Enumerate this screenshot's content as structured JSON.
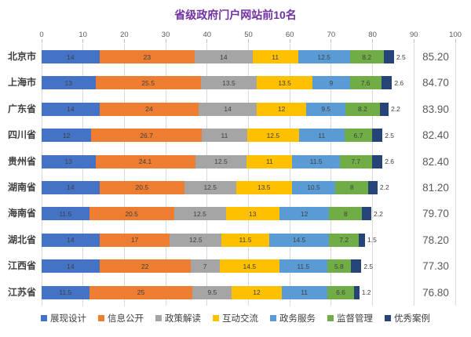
{
  "chart_data": {
    "type": "bar",
    "orientation": "horizontal-stacked",
    "title": "省级政府门户网站前10名",
    "title_color": "#7030A0",
    "grid": true,
    "gridline_color": "#D9D9D9",
    "legend_position": "bottom",
    "x_axis": {
      "min": 0,
      "max": 100,
      "ticks": [
        0,
        10,
        20,
        30,
        40,
        50,
        60,
        70,
        80,
        90,
        100
      ]
    },
    "categories": [
      "北京市",
      "上海市",
      "广东省",
      "四川省",
      "贵州省",
      "湖南省",
      "海南省",
      "湖北省",
      "江西省",
      "江苏省"
    ],
    "series": [
      {
        "name": "展现设计",
        "color": "#4472C4",
        "values": [
          14,
          13,
          14,
          12,
          13,
          14,
          11.5,
          14,
          14,
          11.5
        ]
      },
      {
        "name": "信息公开",
        "color": "#ED7D31",
        "values": [
          23,
          25.5,
          24,
          26.7,
          24.1,
          20.5,
          20.5,
          17,
          22,
          25
        ]
      },
      {
        "name": "政策解读",
        "color": "#A5A5A5",
        "values": [
          14,
          13.5,
          14,
          11,
          12.5,
          12.5,
          12.5,
          12.5,
          7,
          9.5
        ]
      },
      {
        "name": "互动交流",
        "color": "#FFC000",
        "values": [
          11,
          13.5,
          12,
          12.5,
          11,
          13.5,
          13,
          11.5,
          14.5,
          12
        ]
      },
      {
        "name": "政务服务",
        "color": "#5B9BD5",
        "values": [
          12.5,
          9,
          9.5,
          11,
          11.5,
          10.5,
          12,
          14.5,
          11.5,
          11
        ]
      },
      {
        "name": "监督管理",
        "color": "#70AD47",
        "values": [
          8.2,
          7.6,
          8.2,
          6.7,
          7.7,
          8,
          8,
          7.2,
          5.8,
          6.6
        ]
      },
      {
        "name": "优秀案例",
        "color": "#264478",
        "values": [
          2.5,
          2.6,
          2.2,
          2.5,
          2.6,
          2.2,
          2.2,
          1.5,
          2.5,
          1.2
        ],
        "label_outside": true
      }
    ],
    "totals": [
      "85.20",
      "84.70",
      "83.90",
      "82.40",
      "82.40",
      "81.20",
      "79.70",
      "78.20",
      "77.30",
      "76.80"
    ]
  }
}
